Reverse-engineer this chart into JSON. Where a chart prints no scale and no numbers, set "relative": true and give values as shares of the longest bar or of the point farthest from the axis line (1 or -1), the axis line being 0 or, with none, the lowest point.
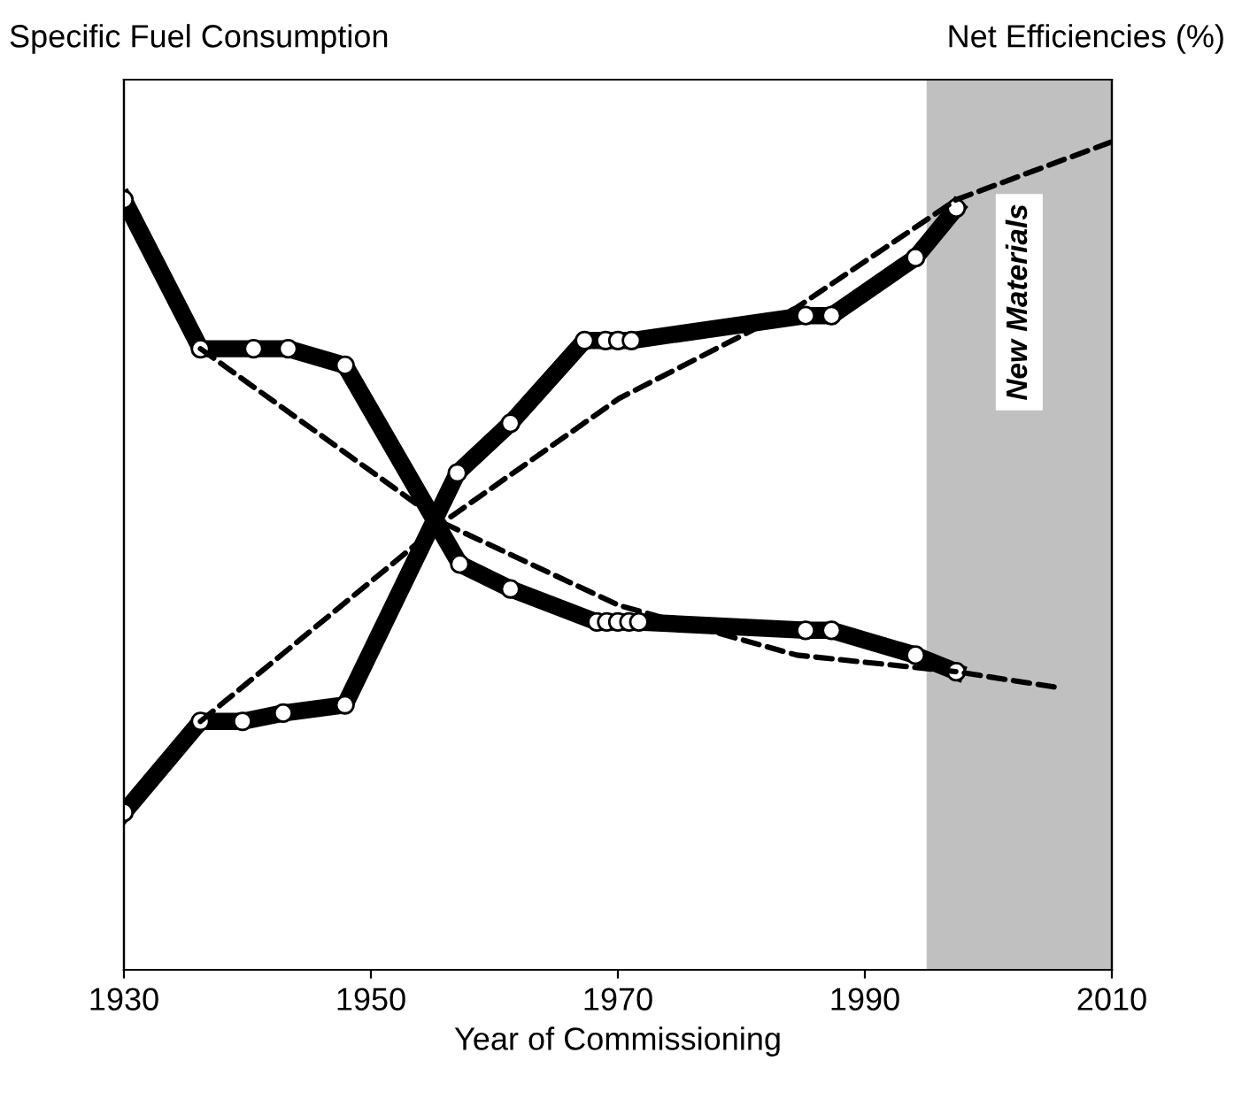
{
  "chart_data": {
    "type": "line",
    "relative": true,
    "ylabel": "Specific Fuel Consumption",
    "y2label": "Net Efficiencies (%)",
    "xlabel": "Year of Commissioning",
    "xlim": [
      1930,
      2010
    ],
    "xticks": [
      1930,
      1950,
      1970,
      1990,
      2010
    ],
    "grid": false,
    "legend": false,
    "bands": [
      {
        "axis": "x",
        "from": 1995,
        "to": 2010,
        "label": "New Materials",
        "color": "#c0c0c0"
      }
    ],
    "series": [
      {
        "color": "#000000",
        "line_style": "solid",
        "marker": "circle",
        "x": [
          1930,
          1936.2,
          1940.5,
          1943.3,
          1947.9,
          1957.2,
          1961.3,
          1968.3,
          1969.1,
          1970,
          1970.9,
          1971.7,
          1985.2,
          1987.3,
          1994.1,
          1997.4
        ],
        "values": [
          0.93,
          0.75,
          0.75,
          0.75,
          0.73,
          0.49,
          0.46,
          0.42,
          0.42,
          0.42,
          0.42,
          0.42,
          0.41,
          0.41,
          0.38,
          0.36
        ]
      },
      {
        "color": "#000000",
        "line_style": "solid",
        "marker": "circle",
        "x": [
          1930,
          1936.2,
          1939.6,
          1942.9,
          1947.9,
          1957,
          1961.3,
          1967.3,
          1969,
          1970,
          1971.1,
          1985.2,
          1987.3,
          1994.1,
          1997.4
        ],
        "values": [
          0.19,
          0.3,
          0.3,
          0.31,
          0.32,
          0.6,
          0.66,
          0.76,
          0.76,
          0.76,
          0.76,
          0.79,
          0.79,
          0.86,
          0.92
        ]
      },
      {
        "color": "#000000",
        "line_style": "dashed",
        "marker": "none",
        "x": [
          1936.2,
          1955.8,
          1970.1,
          1984.5,
          1997.4,
          2006
        ],
        "values": [
          0.75,
          0.54,
          0.44,
          0.38,
          0.36,
          0.34
        ]
      },
      {
        "color": "#000000",
        "line_style": "dashed",
        "marker": "none",
        "x": [
          1936.2,
          1955.8,
          1970.1,
          1984.5,
          1997.4,
          2010
        ],
        "values": [
          0.3,
          0.54,
          0.69,
          0.8,
          0.93,
          1.0
        ]
      }
    ]
  }
}
